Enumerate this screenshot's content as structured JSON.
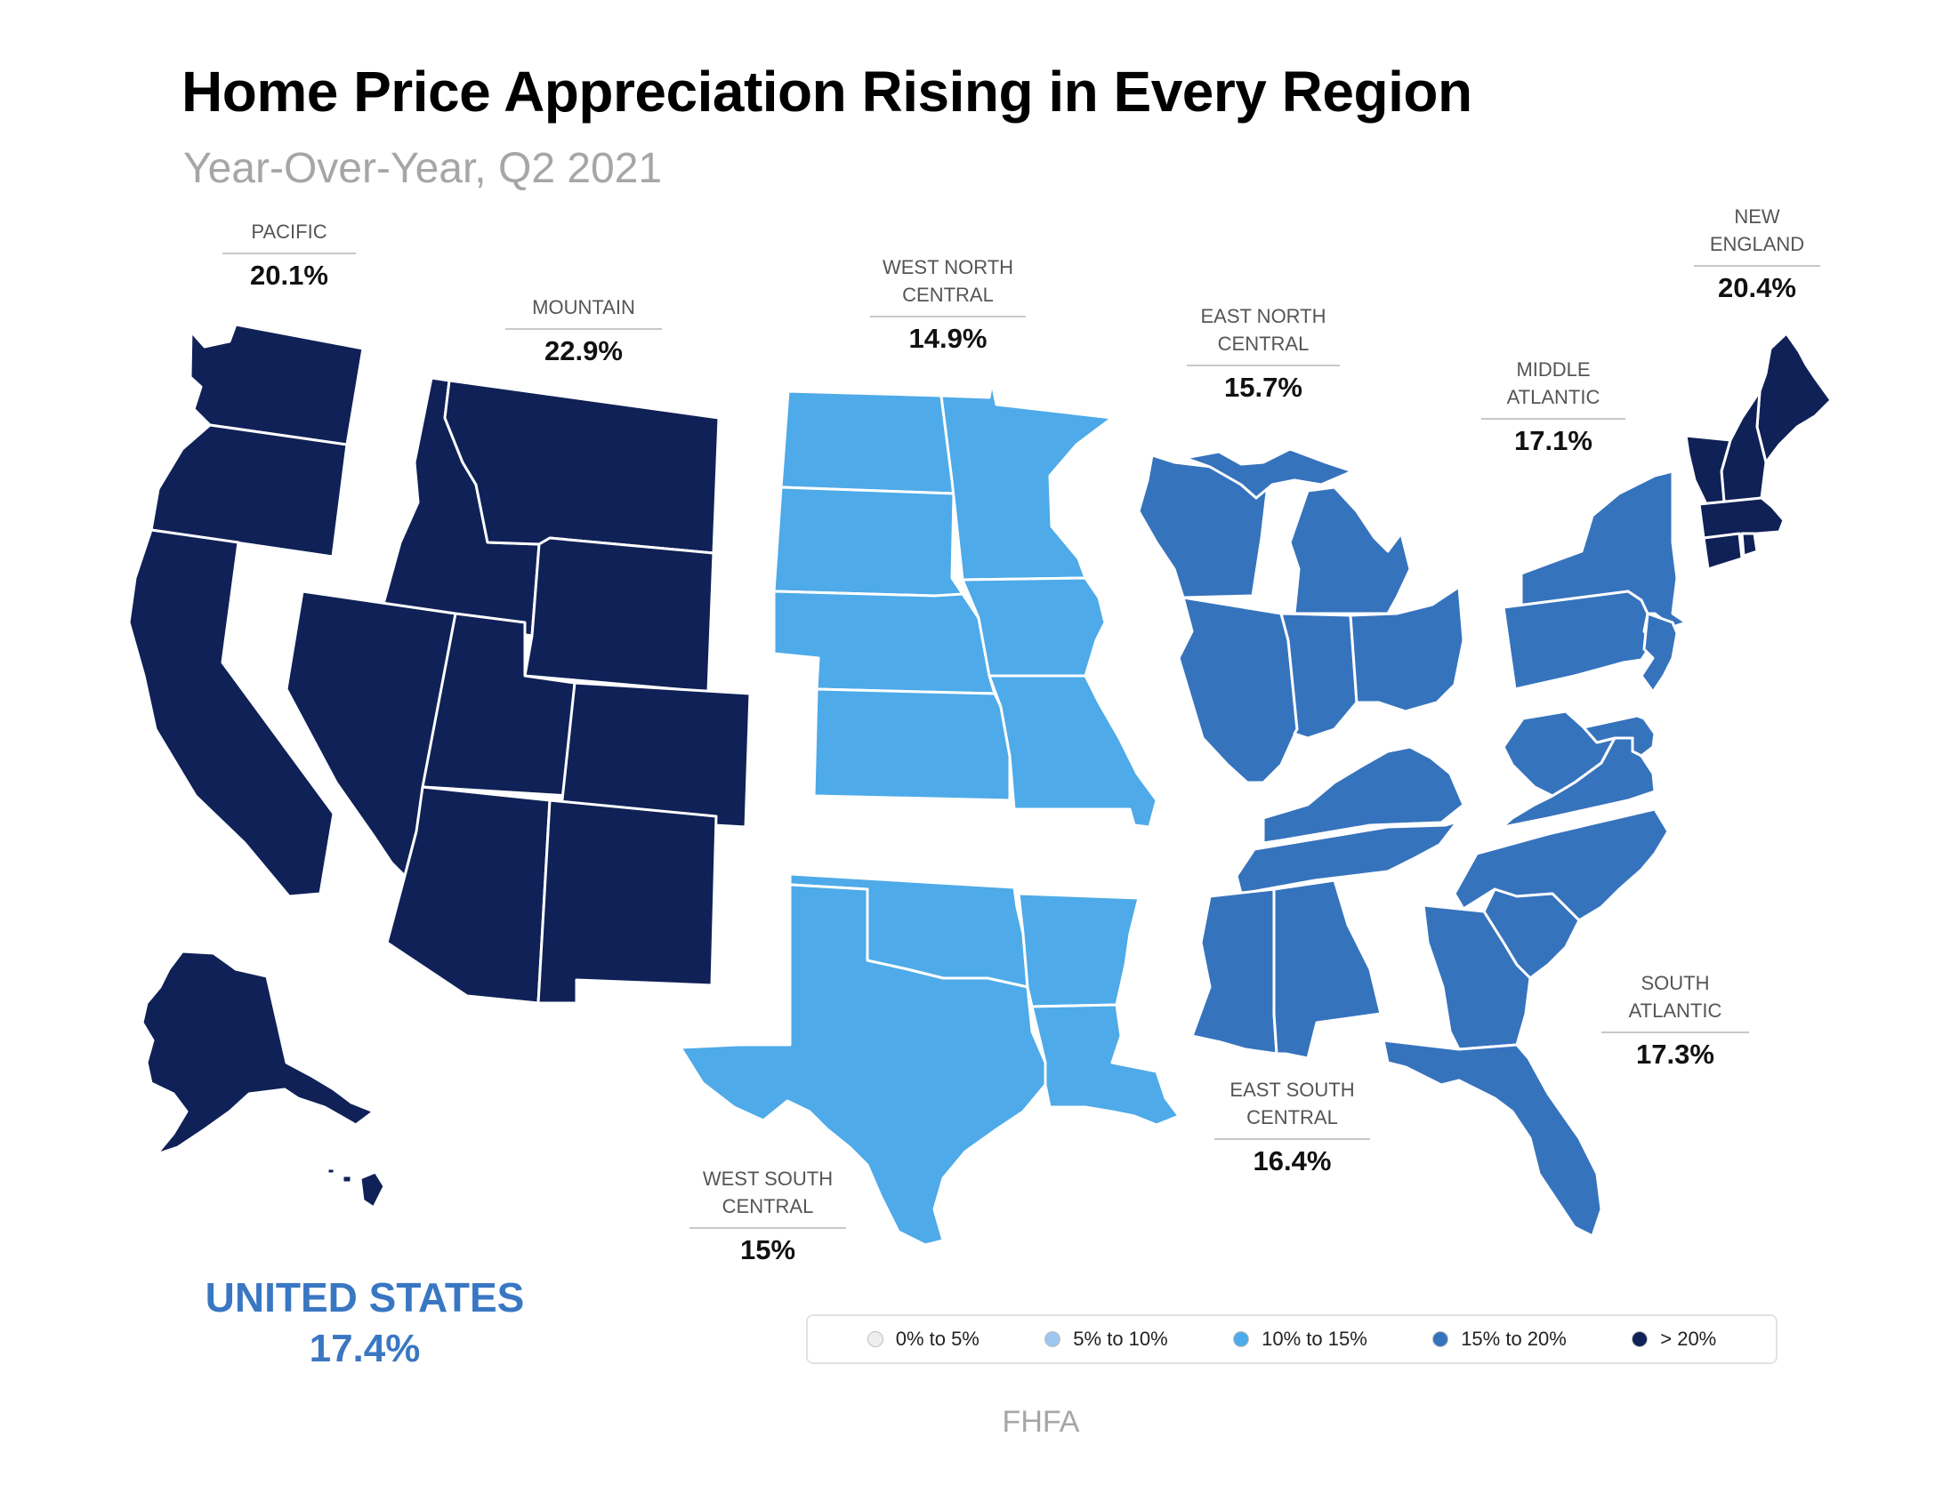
{
  "title": "Home Price Appreciation Rising in Every Region",
  "subtitle": "Year-Over-Year, Q2 2021",
  "colors": {
    "band_0_5": "#eeeeee",
    "band_5_10": "#9cc7ee",
    "band_10_15": "#4eaae8",
    "band_15_20": "#3673bd",
    "band_over_20": "#0f2157",
    "accent_us": "#3a77c3"
  },
  "regions": [
    {
      "key": "pacific",
      "name": "PACIFIC",
      "value": "20.1%",
      "band": "band_over_20"
    },
    {
      "key": "mountain",
      "name": "MOUNTAIN",
      "value": "22.9%",
      "band": "band_over_20"
    },
    {
      "key": "west_north_central",
      "name": "WEST NORTH\nCENTRAL",
      "value": "14.9%",
      "band": "band_10_15"
    },
    {
      "key": "east_north_central",
      "name": "EAST NORTH\nCENTRAL",
      "value": "15.7%",
      "band": "band_15_20"
    },
    {
      "key": "middle_atlantic",
      "name": "MIDDLE\nATLANTIC",
      "value": "17.1%",
      "band": "band_15_20"
    },
    {
      "key": "new_england",
      "name": "NEW\nENGLAND",
      "value": "20.4%",
      "band": "band_over_20"
    },
    {
      "key": "south_atlantic",
      "name": "SOUTH\nATLANTIC",
      "value": "17.3%",
      "band": "band_15_20"
    },
    {
      "key": "east_south_central",
      "name": "EAST SOUTH\nCENTRAL",
      "value": "16.4%",
      "band": "band_15_20"
    },
    {
      "key": "west_south_central",
      "name": "WEST SOUTH\nCENTRAL",
      "value": "15%",
      "band": "band_10_15"
    }
  ],
  "united_states": {
    "name": "UNITED STATES",
    "value": "17.4%"
  },
  "legend": [
    {
      "label": "0% to 5%",
      "band": "band_0_5"
    },
    {
      "label": "5% to 10%",
      "band": "band_5_10"
    },
    {
      "label": "10% to 15%",
      "band": "band_10_15"
    },
    {
      "label": "15% to 20%",
      "band": "band_15_20"
    },
    {
      "label": "> 20%",
      "band": "band_over_20"
    }
  ],
  "source": "FHFA"
}
